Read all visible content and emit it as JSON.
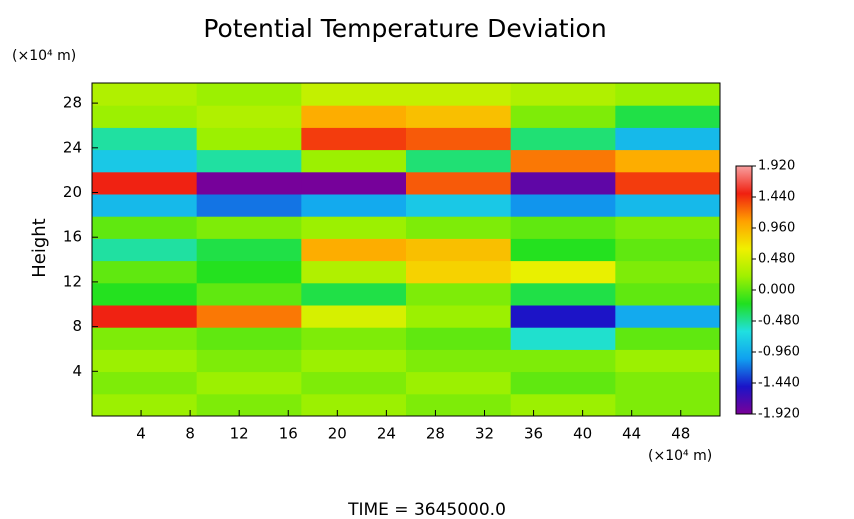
{
  "chart_data": {
    "type": "heatmap",
    "title": "Potential Temperature Deviation",
    "y_unit_label": "(×10⁴ m)",
    "y_label": "Height",
    "x_unit_label": "(×10⁴ m)",
    "footer": "TIME = 3645000.0",
    "xlim": [
      0,
      51.2
    ],
    "ylim": [
      0,
      29.8
    ],
    "xticks": [
      4,
      8,
      12,
      16,
      20,
      24,
      28,
      32,
      36,
      40,
      44,
      48
    ],
    "yticks": [
      4,
      8,
      12,
      16,
      20,
      24,
      28
    ],
    "z": [
      [
        0.2,
        0.1,
        0.2,
        0.1,
        0.2,
        0.1
      ],
      [
        0.1,
        0.2,
        0.1,
        0.2,
        0.0,
        0.1
      ],
      [
        0.2,
        0.1,
        0.2,
        0.1,
        0.1,
        0.2
      ],
      [
        0.1,
        0.0,
        0.1,
        0.0,
        -0.6,
        0.0
      ],
      [
        1.5,
        1.2,
        0.5,
        0.2,
        -1.5,
        -1.0
      ],
      [
        -0.2,
        0.0,
        -0.3,
        0.1,
        -0.3,
        0.0
      ],
      [
        0.0,
        -0.2,
        0.3,
        0.8,
        0.6,
        0.1
      ],
      [
        -0.5,
        -0.3,
        1.0,
        0.9,
        -0.2,
        0.0
      ],
      [
        0.0,
        0.1,
        0.2,
        0.1,
        0.0,
        0.1
      ],
      [
        -0.9,
        -1.2,
        -1.0,
        -0.8,
        -1.1,
        -0.9
      ],
      [
        1.5,
        -1.9,
        -1.9,
        1.3,
        -1.8,
        1.4
      ],
      [
        -0.8,
        -0.5,
        0.2,
        -0.4,
        1.2,
        1.0
      ],
      [
        -0.5,
        0.2,
        1.4,
        1.3,
        -0.4,
        -0.9
      ],
      [
        0.2,
        0.3,
        1.0,
        0.9,
        0.1,
        -0.3
      ],
      [
        0.3,
        0.2,
        0.4,
        0.4,
        0.3,
        0.2
      ]
    ],
    "zlim": [
      -1.92,
      1.92
    ],
    "colorscale": [
      "#7a0098",
      "#1a14c8",
      "#10a0f0",
      "#20e0e0",
      "#20e020",
      "#a0f000",
      "#f0f000",
      "#ffa000",
      "#f02010",
      "#f8a0a0"
    ],
    "zticks": [
      {
        "value": 1.92,
        "label": "1.920"
      },
      {
        "value": 1.44,
        "label": "1.440"
      },
      {
        "value": 0.96,
        "label": "0.960"
      },
      {
        "value": 0.48,
        "label": "0.480"
      },
      {
        "value": 0,
        "label": "0.000"
      },
      {
        "value": -0.48,
        "label": "-0.480"
      },
      {
        "value": -0.96,
        "label": "-0.960"
      },
      {
        "value": -1.44,
        "label": "-1.440"
      },
      {
        "value": -1.92,
        "label": "-1.920"
      }
    ]
  }
}
